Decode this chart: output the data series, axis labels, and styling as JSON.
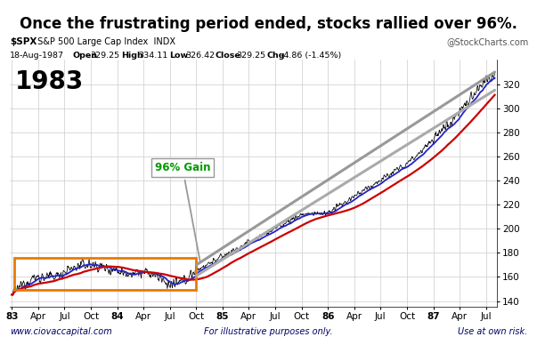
{
  "title": "Once the frustrating period ended, stocks rallied over 96%.",
  "subtitle_bold": "$SPX",
  "subtitle_normal": " S&P 500 Large Cap Index  INDX",
  "subtitle_right": "@StockCharts.com",
  "info_open_label": "Open",
  "info_high_label": "High",
  "info_low_label": "Low",
  "info_close_label": "Close",
  "info_chg_label": "Chg",
  "info_date": "18-Aug-1987",
  "info_open": "329.25",
  "info_high": "334.11",
  "info_low": "326.42",
  "info_close": "329.25",
  "info_chg": "-4.86 (-1.45%)",
  "footer_left": "www.ciovaccapital.com",
  "footer_center": "For illustrative purposes only.",
  "footer_right": "Use at own risk.",
  "year_label": "1983",
  "gain_label": "96% Gain",
  "bg_color": "#ffffff",
  "plot_bg_color": "#ffffff",
  "grid_color": "#cccccc",
  "title_color": "#000000",
  "footer_color": "#000066",
  "year_label_fontsize": 20,
  "title_fontsize": 12,
  "ylim": [
    135,
    340
  ],
  "yticks": [
    140,
    160,
    180,
    200,
    220,
    240,
    260,
    280,
    300,
    320
  ],
  "xlabel_ticks": [
    "83",
    "Apr",
    "Jul",
    "Oct",
    "84",
    "Apr",
    "Jul",
    "Oct",
    "85",
    "Apr",
    "Jul",
    "Oct",
    "86",
    "Apr",
    "Jul",
    "Oct",
    "87",
    "Apr",
    "Jul"
  ]
}
